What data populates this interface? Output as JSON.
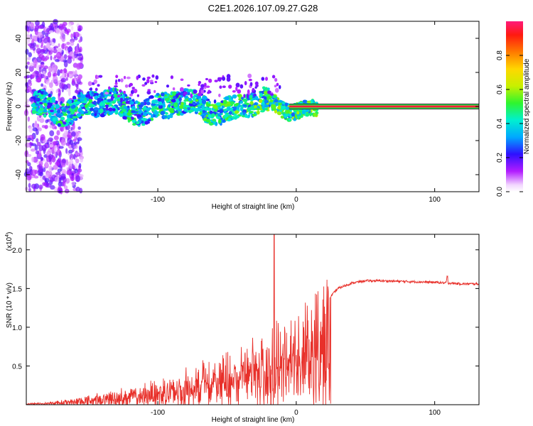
{
  "title": "C2E1.2026.107.09.27.G28",
  "chart_data": [
    {
      "type": "heatmap",
      "name": "spectrogram",
      "xlabel": "Height of straight line (km)",
      "ylabel": "Frequency (Hz)",
      "xlim": [
        -195,
        132
      ],
      "ylim": [
        -50,
        50
      ],
      "xticks": [
        -100,
        0,
        100
      ],
      "yticks": [
        -40,
        -20,
        0,
        20,
        40
      ],
      "colorbar": {
        "label": "Normalized spectral amplitude",
        "range": [
          0,
          1
        ],
        "ticks": [
          0.0,
          0.2,
          0.4,
          0.6,
          0.8
        ]
      },
      "ridge": {
        "stable_from_km": 15,
        "stable_to_km": 132,
        "frequency_hz": 0,
        "amplitude": 0.95
      },
      "noisy_region_km": [
        -195,
        -155
      ]
    },
    {
      "type": "line",
      "name": "snr",
      "xlabel": "Height of straight line (km)",
      "ylabel": "SNR (10 * v/v)",
      "multiplier": "(x10",
      "multiplier_exp": "4",
      "xlim": [
        -195,
        132
      ],
      "ylim": [
        0,
        2.2
      ],
      "xticks": [
        -100,
        0,
        100
      ],
      "yticks": [
        0.5,
        1.0,
        1.5,
        2.0
      ],
      "series_color": "#e8302a",
      "anchors": [
        [
          -195,
          0.01
        ],
        [
          -180,
          0.02
        ],
        [
          -160,
          0.04
        ],
        [
          -140,
          0.07
        ],
        [
          -120,
          0.12
        ],
        [
          -100,
          0.17
        ],
        [
          -80,
          0.26
        ],
        [
          -60,
          0.38
        ],
        [
          -40,
          0.52
        ],
        [
          -20,
          0.68
        ],
        [
          -10,
          0.85
        ],
        [
          0,
          0.95
        ],
        [
          10,
          1.05
        ],
        [
          20,
          1.3
        ],
        [
          30,
          1.5
        ],
        [
          40,
          1.57
        ],
        [
          50,
          1.6
        ],
        [
          60,
          1.6
        ],
        [
          80,
          1.59
        ],
        [
          100,
          1.58
        ],
        [
          120,
          1.56
        ],
        [
          132,
          1.56
        ]
      ],
      "spike": {
        "x": -16,
        "y": 2.2
      }
    }
  ]
}
